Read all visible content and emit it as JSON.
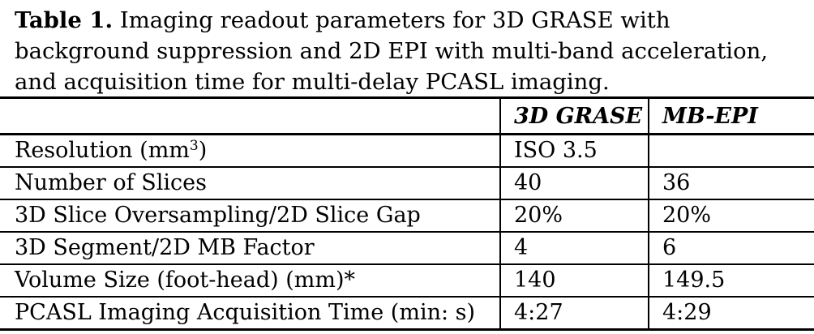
{
  "caption": {
    "label": "Table 1.",
    "text": " Imaging readout parameters for 3D GRASE with background suppression and 2D EPI with multi-band acceleration, and acquisition time for multi-delay PCASL imaging."
  },
  "table": {
    "headers": [
      "",
      "3D GRASE",
      "MB-EPI"
    ],
    "rows": [
      {
        "param_main": "Resolution (mm",
        "param_sup": "3",
        "param_tail": ")",
        "grase": "ISO 3.5",
        "epi": ""
      },
      {
        "param": "Number of Slices",
        "grase": "40",
        "epi": "36"
      },
      {
        "param": "3D Slice Oversampling/2D Slice Gap",
        "grase": "20%",
        "epi": "20%"
      },
      {
        "param": "3D Segment/2D MB Factor",
        "grase": "4",
        "epi": "6"
      },
      {
        "param": "Volume Size (foot-head) (mm)*",
        "grase": "140",
        "epi": "149.5"
      },
      {
        "param": "PCASL Imaging Acquisition Time (min: s)",
        "grase": "4:27",
        "epi": "4:29"
      }
    ]
  }
}
